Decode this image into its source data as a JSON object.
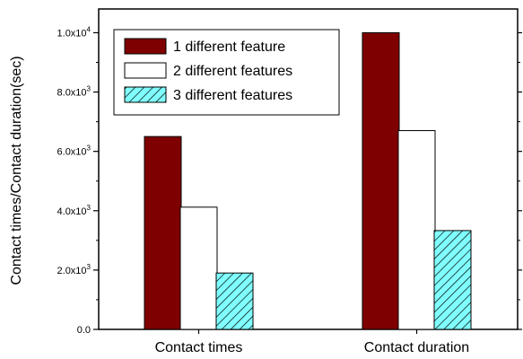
{
  "chart_data": {
    "type": "bar",
    "categories": [
      "Contact times",
      "Contact duration"
    ],
    "series": [
      {
        "name": "1 different feature",
        "values": [
          6500,
          10000
        ]
      },
      {
        "name": "2 different features",
        "values": [
          4120,
          6700
        ]
      },
      {
        "name": "3 different features",
        "values": [
          1900,
          3330
        ]
      }
    ],
    "title": "",
    "xlabel": "",
    "ylabel": "Contact times/Contact duration(sec)",
    "ylim": [
      0,
      10800
    ],
    "yticks": [
      0,
      2000,
      4000,
      6000,
      8000,
      10000
    ],
    "ytick_labels": [
      {
        "base": "0.0",
        "exp": ""
      },
      {
        "base": "2.0x10",
        "exp": "3"
      },
      {
        "base": "4.0x10",
        "exp": "3"
      },
      {
        "base": "6.0x10",
        "exp": "3"
      },
      {
        "base": "8.0x10",
        "exp": "3"
      },
      {
        "base": "1.0x10",
        "exp": "4"
      }
    ],
    "legend_position": "top-left",
    "grid": false,
    "colors": [
      "#7f0000",
      "#ffffff",
      "#80ffff"
    ],
    "patterns": [
      "solid",
      "solid",
      "hatched"
    ]
  }
}
